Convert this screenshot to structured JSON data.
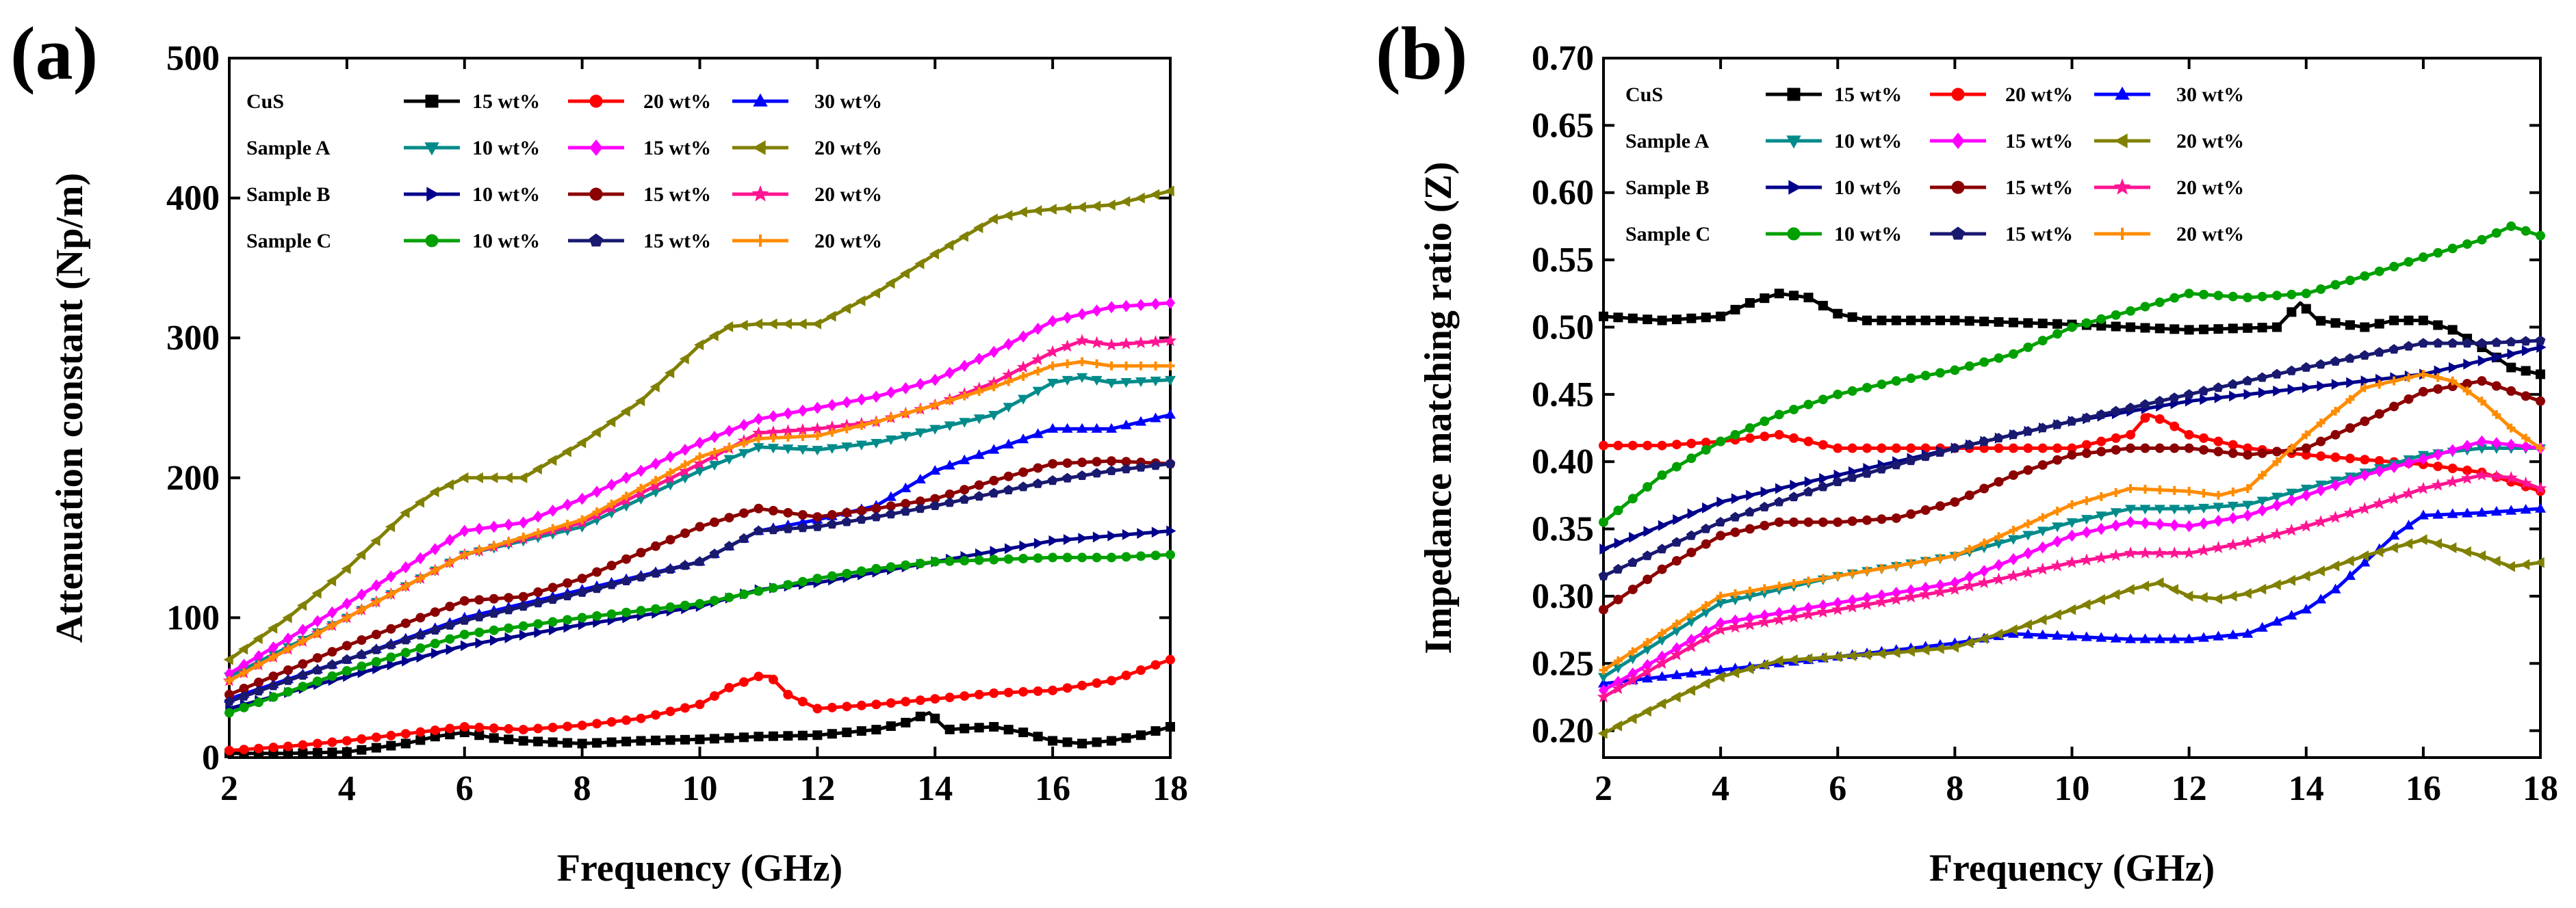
{
  "chart_data": [
    {
      "panel_label": "(a)",
      "type": "line",
      "title": "",
      "xlabel": "Frequency (GHz)",
      "ylabel": "Attenuation constant (Np/m)",
      "xlim": [
        2,
        18
      ],
      "ylim": [
        0,
        500
      ],
      "xticks": [
        2,
        4,
        6,
        8,
        10,
        12,
        14,
        16,
        18
      ],
      "yticks": [
        0,
        100,
        200,
        300,
        400,
        500
      ],
      "legend_position": "top-left",
      "legend_groups": [
        "CuS",
        "Sample A",
        "Sample B",
        "Sample C"
      ],
      "series": [
        {
          "group": "CuS",
          "name": "15 wt%",
          "color": "#000000",
          "marker": "square",
          "x": [
            2,
            3,
            4,
            5,
            5.5,
            6,
            6.5,
            7,
            8,
            9,
            10,
            11,
            12,
            13,
            13.5,
            13.9,
            14.2,
            15,
            15.5,
            16,
            16.5,
            17,
            17.5,
            18
          ],
          "y": [
            3,
            3,
            4,
            10,
            15,
            18,
            14,
            12,
            10,
            12,
            13,
            15,
            16,
            20,
            25,
            32,
            20,
            22,
            18,
            12,
            10,
            12,
            16,
            22
          ]
        },
        {
          "group": "CuS",
          "name": "20 wt%",
          "color": "#ff0000",
          "marker": "circle",
          "x": [
            2,
            3,
            4,
            5,
            6,
            7,
            8,
            9,
            10,
            10.5,
            11,
            11.2,
            11.5,
            12,
            13,
            14,
            15,
            16,
            17,
            18
          ],
          "y": [
            5,
            8,
            12,
            17,
            22,
            20,
            23,
            28,
            38,
            50,
            58,
            58,
            45,
            35,
            38,
            42,
            46,
            48,
            55,
            70
          ]
        },
        {
          "group": "CuS",
          "name": "30 wt%",
          "color": "#0000ff",
          "marker": "triangle-up",
          "x": [
            2,
            4,
            6,
            8,
            10,
            11,
            12,
            13,
            14,
            15,
            16,
            17,
            18
          ],
          "y": [
            42,
            70,
            100,
            120,
            140,
            162,
            170,
            180,
            205,
            220,
            235,
            235,
            245
          ]
        },
        {
          "group": "Sample A",
          "name": "10 wt%",
          "color": "#008b8b",
          "marker": "triangle-down",
          "x": [
            2,
            4,
            6,
            8,
            10,
            11,
            12,
            13,
            14,
            15,
            16,
            16.5,
            17,
            18
          ],
          "y": [
            58,
            100,
            145,
            165,
            205,
            222,
            220,
            225,
            235,
            245,
            268,
            272,
            268,
            270
          ]
        },
        {
          "group": "Sample A",
          "name": "15 wt%",
          "color": "#ff00ff",
          "marker": "diamond",
          "x": [
            2,
            4,
            6,
            7,
            8,
            10,
            11,
            12,
            13,
            14,
            15,
            16,
            17,
            18
          ],
          "y": [
            60,
            110,
            162,
            168,
            185,
            225,
            242,
            250,
            258,
            270,
            290,
            312,
            322,
            325
          ]
        },
        {
          "group": "Sample A",
          "name": "20 wt%",
          "color": "#808000",
          "marker": "triangle-left",
          "x": [
            2,
            3,
            4,
            5,
            5.5,
            6,
            7,
            8,
            9,
            10,
            10.5,
            11,
            12,
            13,
            14,
            15,
            15.5,
            16,
            17,
            18
          ],
          "y": [
            70,
            100,
            135,
            175,
            190,
            200,
            200,
            225,
            255,
            295,
            308,
            310,
            310,
            332,
            360,
            385,
            390,
            392,
            395,
            405
          ]
        },
        {
          "group": "Sample B",
          "name": "10 wt%",
          "color": "#00008b",
          "marker": "triangle-right",
          "x": [
            2,
            4,
            6,
            8,
            10,
            11,
            12,
            14,
            16,
            18
          ],
          "y": [
            35,
            58,
            80,
            95,
            108,
            120,
            125,
            140,
            155,
            162
          ]
        },
        {
          "group": "Sample B",
          "name": "15 wt%",
          "color": "#8b0000",
          "marker": "circle",
          "x": [
            2,
            4,
            6,
            7,
            8,
            10,
            11,
            12,
            13,
            14,
            15,
            16,
            17,
            18
          ],
          "y": [
            45,
            80,
            112,
            115,
            128,
            165,
            178,
            172,
            178,
            185,
            198,
            210,
            212,
            210
          ]
        },
        {
          "group": "Sample B",
          "name": "20 wt%",
          "color": "#ff1493",
          "marker": "star",
          "x": [
            2,
            4,
            6,
            8,
            10,
            11,
            12,
            13,
            14,
            15,
            16,
            16.5,
            17,
            18
          ],
          "y": [
            55,
            100,
            145,
            168,
            210,
            232,
            235,
            240,
            252,
            268,
            290,
            298,
            295,
            298
          ]
        },
        {
          "group": "Sample C",
          "name": "10 wt%",
          "color": "#00a000",
          "marker": "circle",
          "x": [
            2,
            4,
            6,
            8,
            10,
            12,
            13,
            14,
            16,
            17,
            18
          ],
          "y": [
            32,
            62,
            88,
            100,
            110,
            128,
            135,
            140,
            143,
            143,
            145
          ]
        },
        {
          "group": "Sample C",
          "name": "15 wt%",
          "color": "#191970",
          "marker": "pentagon",
          "x": [
            2,
            4,
            6,
            8,
            10,
            11,
            12,
            13,
            14,
            16,
            17,
            18
          ],
          "y": [
            40,
            70,
            98,
            118,
            140,
            162,
            165,
            172,
            180,
            198,
            205,
            210
          ]
        },
        {
          "group": "Sample C",
          "name": "20 wt%",
          "color": "#ff8c00",
          "marker": "plus",
          "x": [
            2,
            4,
            6,
            8,
            10,
            11,
            12,
            13,
            14,
            15,
            16,
            16.5,
            17,
            18
          ],
          "y": [
            55,
            100,
            145,
            170,
            215,
            228,
            230,
            240,
            252,
            265,
            280,
            283,
            280,
            280
          ]
        }
      ]
    },
    {
      "panel_label": "(b)",
      "type": "line",
      "title": "",
      "xlabel": "Frequency (GHz)",
      "ylabel": "Impedance matching ratio (Z)",
      "xlim": [
        2,
        18
      ],
      "ylim": [
        0.18,
        0.7
      ],
      "xticks": [
        2,
        4,
        6,
        8,
        10,
        12,
        14,
        16,
        18
      ],
      "yticks": [
        0.2,
        0.25,
        0.3,
        0.35,
        0.4,
        0.45,
        0.5,
        0.55,
        0.6,
        0.65,
        0.7
      ],
      "legend_position": "top-left",
      "legend_groups": [
        "CuS",
        "Sample A",
        "Sample B",
        "Sample C"
      ],
      "series": [
        {
          "group": "CuS",
          "name": "15 wt%",
          "color": "#000000",
          "marker": "square",
          "x": [
            2,
            3,
            4,
            4.5,
            5,
            5.5,
            6,
            6.5,
            8,
            10,
            12,
            13.5,
            13.9,
            14.2,
            15,
            15.5,
            16,
            16.5,
            17,
            17.5,
            18
          ],
          "y": [
            0.508,
            0.505,
            0.508,
            0.518,
            0.525,
            0.522,
            0.51,
            0.505,
            0.505,
            0.502,
            0.498,
            0.5,
            0.518,
            0.505,
            0.5,
            0.505,
            0.505,
            0.498,
            0.485,
            0.47,
            0.465
          ]
        },
        {
          "group": "CuS",
          "name": "20 wt%",
          "color": "#ff0000",
          "marker": "circle",
          "x": [
            2,
            3,
            4,
            5,
            6,
            8,
            10,
            11,
            11.3,
            11.6,
            12,
            13,
            14,
            16,
            17,
            17.5,
            18
          ],
          "y": [
            0.412,
            0.412,
            0.415,
            0.42,
            0.41,
            0.41,
            0.41,
            0.42,
            0.435,
            0.43,
            0.42,
            0.41,
            0.405,
            0.398,
            0.392,
            0.385,
            0.378
          ]
        },
        {
          "group": "CuS",
          "name": "30 wt%",
          "color": "#0000ff",
          "marker": "triangle-up",
          "x": [
            2,
            4,
            6,
            8,
            9,
            10,
            11,
            12,
            13,
            14,
            14.5,
            15,
            15.5,
            16,
            17,
            18
          ],
          "y": [
            0.235,
            0.245,
            0.255,
            0.265,
            0.272,
            0.27,
            0.268,
            0.268,
            0.272,
            0.29,
            0.305,
            0.325,
            0.345,
            0.36,
            0.362,
            0.365
          ]
        },
        {
          "group": "Sample A",
          "name": "10 wt%",
          "color": "#008b8b",
          "marker": "triangle-down",
          "x": [
            2,
            4,
            6,
            8,
            10,
            11,
            12,
            13,
            14,
            15,
            16,
            17,
            18
          ],
          "y": [
            0.24,
            0.295,
            0.315,
            0.33,
            0.355,
            0.365,
            0.365,
            0.368,
            0.38,
            0.392,
            0.405,
            0.41,
            0.41
          ]
        },
        {
          "group": "Sample A",
          "name": "15 wt%",
          "color": "#ff00ff",
          "marker": "diamond",
          "x": [
            2,
            4,
            6,
            8,
            10,
            11,
            12,
            13,
            14,
            15,
            16,
            17,
            18
          ],
          "y": [
            0.23,
            0.28,
            0.295,
            0.31,
            0.345,
            0.355,
            0.352,
            0.36,
            0.375,
            0.39,
            0.402,
            0.415,
            0.41
          ]
        },
        {
          "group": "Sample A",
          "name": "20 wt%",
          "color": "#808000",
          "marker": "triangle-left",
          "x": [
            2,
            3,
            4,
            5,
            6,
            7,
            8,
            9,
            10,
            11,
            11.5,
            12,
            12.5,
            13,
            14,
            15,
            16,
            17,
            17.5,
            18
          ],
          "y": [
            0.198,
            0.22,
            0.24,
            0.252,
            0.255,
            0.258,
            0.262,
            0.275,
            0.29,
            0.305,
            0.31,
            0.3,
            0.298,
            0.302,
            0.315,
            0.33,
            0.342,
            0.33,
            0.322,
            0.325
          ]
        },
        {
          "group": "Sample B",
          "name": "10 wt%",
          "color": "#00008b",
          "marker": "triangle-right",
          "x": [
            2,
            4,
            6,
            8,
            10,
            12,
            14,
            16,
            17,
            18
          ],
          "y": [
            0.335,
            0.37,
            0.39,
            0.41,
            0.43,
            0.445,
            0.455,
            0.465,
            0.475,
            0.485
          ]
        },
        {
          "group": "Sample B",
          "name": "15 wt%",
          "color": "#8b0000",
          "marker": "circle",
          "x": [
            2,
            3,
            4,
            5,
            6,
            7,
            8,
            9,
            10,
            11,
            12,
            13,
            14,
            15,
            16,
            17,
            18
          ],
          "y": [
            0.29,
            0.32,
            0.345,
            0.355,
            0.355,
            0.358,
            0.37,
            0.39,
            0.405,
            0.41,
            0.41,
            0.405,
            0.41,
            0.43,
            0.452,
            0.46,
            0.445
          ]
        },
        {
          "group": "Sample B",
          "name": "20 wt%",
          "color": "#ff1493",
          "marker": "star",
          "x": [
            2,
            4,
            6,
            8,
            10,
            11,
            12,
            13,
            14,
            15,
            16,
            17,
            17.5,
            18
          ],
          "y": [
            0.225,
            0.275,
            0.29,
            0.305,
            0.325,
            0.332,
            0.332,
            0.34,
            0.352,
            0.365,
            0.38,
            0.39,
            0.388,
            0.38
          ]
        },
        {
          "group": "Sample C",
          "name": "10 wt%",
          "color": "#00a000",
          "marker": "circle",
          "x": [
            2,
            3,
            4,
            5,
            6,
            7,
            8,
            9,
            10,
            11,
            12,
            13,
            14,
            15,
            16,
            17,
            17.5,
            18
          ],
          "y": [
            0.355,
            0.39,
            0.415,
            0.435,
            0.45,
            0.46,
            0.468,
            0.48,
            0.5,
            0.512,
            0.525,
            0.522,
            0.525,
            0.538,
            0.552,
            0.565,
            0.575,
            0.568
          ]
        },
        {
          "group": "Sample C",
          "name": "15 wt%",
          "color": "#191970",
          "marker": "pentagon",
          "x": [
            2,
            4,
            6,
            8,
            10,
            12,
            14,
            16,
            17,
            18
          ],
          "y": [
            0.315,
            0.355,
            0.385,
            0.41,
            0.43,
            0.45,
            0.47,
            0.488,
            0.488,
            0.49
          ]
        },
        {
          "group": "Sample C",
          "name": "20 wt%",
          "color": "#ff8c00",
          "marker": "plus",
          "x": [
            2,
            4,
            6,
            8,
            10,
            11,
            12,
            12.5,
            13,
            14,
            15,
            16,
            16.5,
            17,
            17.5,
            18
          ],
          "y": [
            0.245,
            0.3,
            0.315,
            0.33,
            0.368,
            0.38,
            0.378,
            0.375,
            0.38,
            0.42,
            0.455,
            0.465,
            0.46,
            0.445,
            0.425,
            0.41
          ]
        }
      ]
    }
  ]
}
